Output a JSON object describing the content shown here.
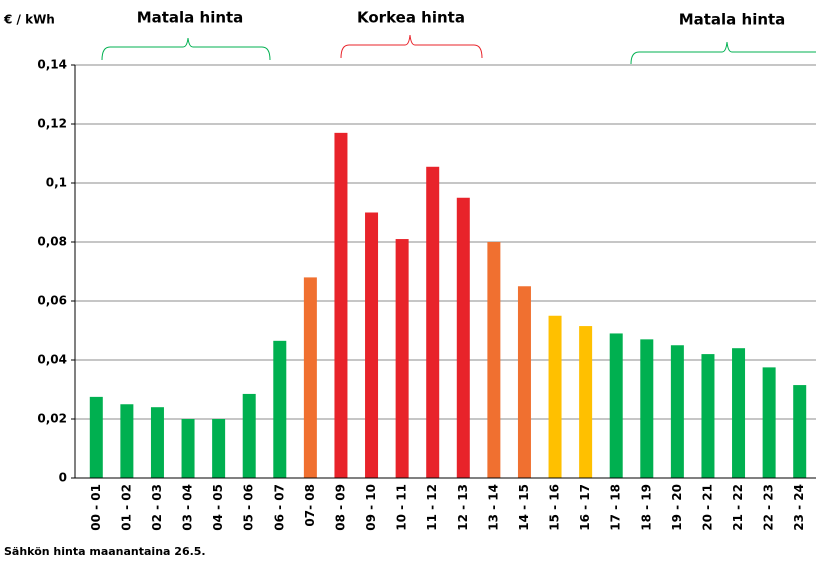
{
  "chart_data": {
    "type": "bar",
    "y_label": "€ / kWh",
    "caption": "Sähkön hinta maanantaina 26.5.",
    "annotations": [
      {
        "text": "Matala hinta",
        "color": "#00b050"
      },
      {
        "text": "Korkea hinta",
        "color": "#e8232a"
      },
      {
        "text": "Matala hinta",
        "color": "#00b050"
      }
    ],
    "categories": [
      "00 - 01",
      "01 - 02",
      "02 - 03",
      "03 - 04",
      "04 - 05",
      "05 - 06",
      "06 - 07",
      "07- 08",
      "08 - 09",
      "09 - 10",
      "10 - 11",
      "11 - 12",
      "12 - 13",
      "13 - 14",
      "14 - 15",
      "15 - 16",
      "16 - 17",
      "17 - 18",
      "18 - 19",
      "19 - 20",
      "20 - 21",
      "21 - 22",
      "22 - 23",
      "23 - 24"
    ],
    "values": [
      0.0275,
      0.025,
      0.024,
      0.02,
      0.02,
      0.0285,
      0.0465,
      0.068,
      0.117,
      0.09,
      0.081,
      0.1055,
      0.095,
      0.08,
      0.065,
      0.055,
      0.0515,
      0.049,
      0.047,
      0.045,
      0.042,
      0.044,
      0.0375,
      0.0315
    ],
    "colors": [
      "#00b050",
      "#00b050",
      "#00b050",
      "#00b050",
      "#00b050",
      "#00b050",
      "#00b050",
      "#f07030",
      "#e8232a",
      "#e8232a",
      "#e8232a",
      "#e8232a",
      "#e8232a",
      "#f07030",
      "#f07030",
      "#ffc000",
      "#ffc000",
      "#00b050",
      "#00b050",
      "#00b050",
      "#00b050",
      "#00b050",
      "#00b050",
      "#00b050"
    ],
    "ylim": [
      0,
      0.14
    ],
    "yticks": [
      0,
      {
        "value": 0.02,
        "label": "0,02"
      },
      {
        "value": 0.04,
        "label": "0,04"
      },
      {
        "value": 0.06,
        "label": "0,06"
      },
      {
        "value": 0.08,
        "label": "0,08"
      },
      {
        "value": 0.1,
        "label": "0,1"
      },
      {
        "value": 0.12,
        "label": "0,12"
      },
      {
        "value": 0.14,
        "label": "0,14"
      }
    ],
    "grid": true
  }
}
